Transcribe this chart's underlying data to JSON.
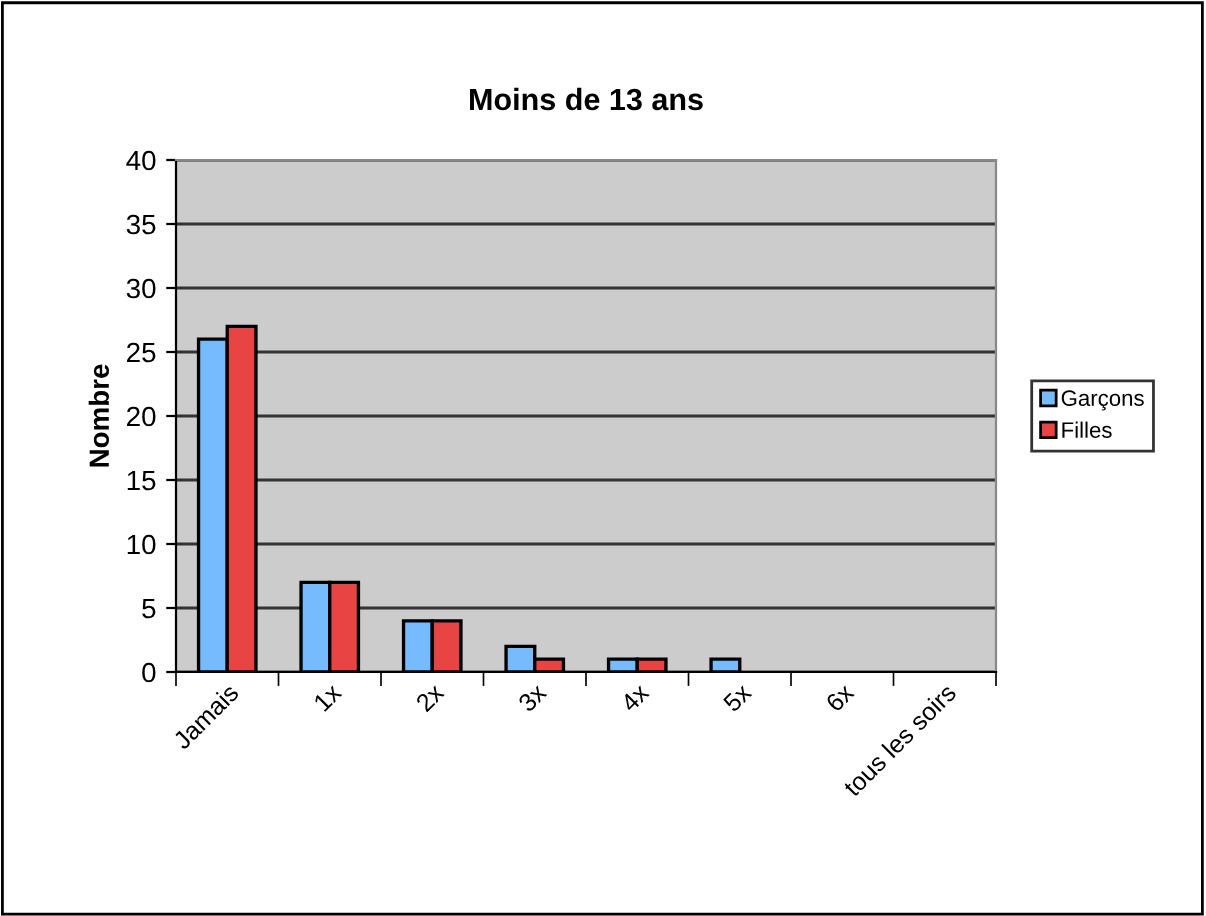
{
  "chart_data": {
    "type": "bar",
    "title": "Moins de 13 ans",
    "ylabel": "Nombre",
    "categories": [
      "Jamais",
      "1x",
      "2x",
      "3x",
      "4x",
      "5x",
      "6x",
      "tous les soirs"
    ],
    "series": [
      {
        "name": "Garçons",
        "color": "#77bbff",
        "values": [
          26,
          7,
          4,
          2,
          1,
          1,
          null,
          null
        ]
      },
      {
        "name": "Filles",
        "color": "#e84444",
        "values": [
          27,
          7,
          4,
          1,
          1,
          null,
          null,
          null
        ]
      }
    ],
    "ylim": [
      0,
      40
    ],
    "yticks": [
      0,
      5,
      10,
      15,
      20,
      25,
      30,
      35,
      40
    ],
    "grid": "y",
    "legend": "right"
  }
}
